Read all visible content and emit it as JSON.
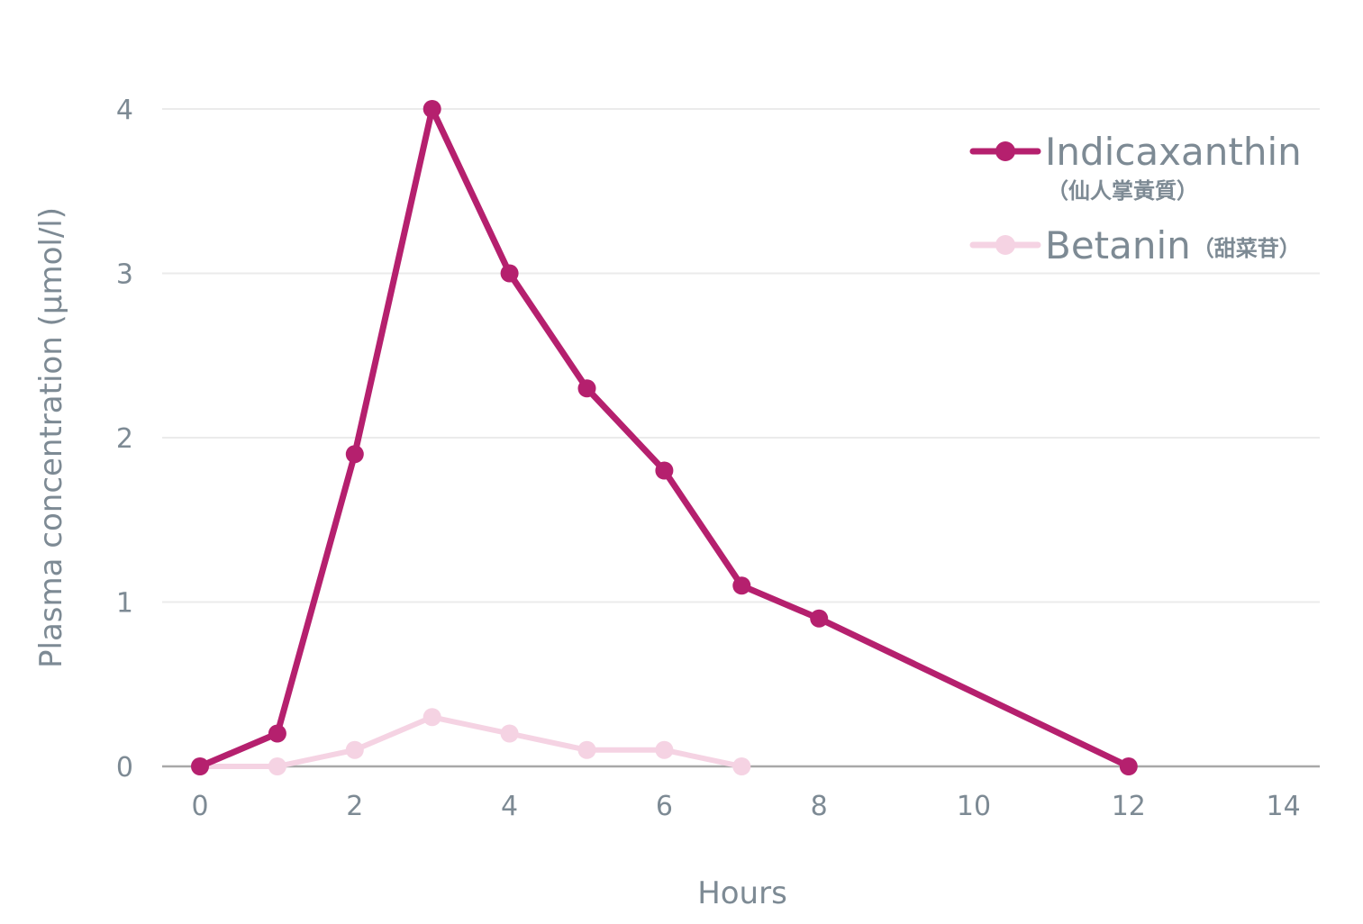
{
  "chart_data": {
    "type": "line",
    "xlabel": "Hours",
    "ylabel": "Plasma concentration (μmol/l)",
    "xlim": [
      0,
      14
    ],
    "ylim": [
      0,
      4
    ],
    "xticks": [
      "0",
      "2",
      "4",
      "6",
      "8",
      "10",
      "12",
      "14"
    ],
    "yticks": [
      "0",
      "1",
      "2",
      "3",
      "4"
    ],
    "grid": "horizontal",
    "legend": "top-right",
    "series": [
      {
        "name": "Indicaxanthin",
        "name_sub": "（仙人掌黃質）",
        "color": "#b5206e",
        "x": [
          0,
          1,
          2,
          3,
          4,
          5,
          6,
          7,
          8,
          12
        ],
        "y": [
          0,
          0.2,
          1.9,
          4.0,
          3.0,
          2.3,
          1.8,
          1.1,
          0.9,
          0
        ]
      },
      {
        "name": "Betanin",
        "name_sub": "（甜菜苷）",
        "color": "#f5d3e3",
        "x": [
          0,
          1,
          2,
          3,
          4,
          5,
          6,
          7
        ],
        "y": [
          0,
          0,
          0.1,
          0.3,
          0.2,
          0.1,
          0.1,
          0
        ]
      }
    ]
  }
}
